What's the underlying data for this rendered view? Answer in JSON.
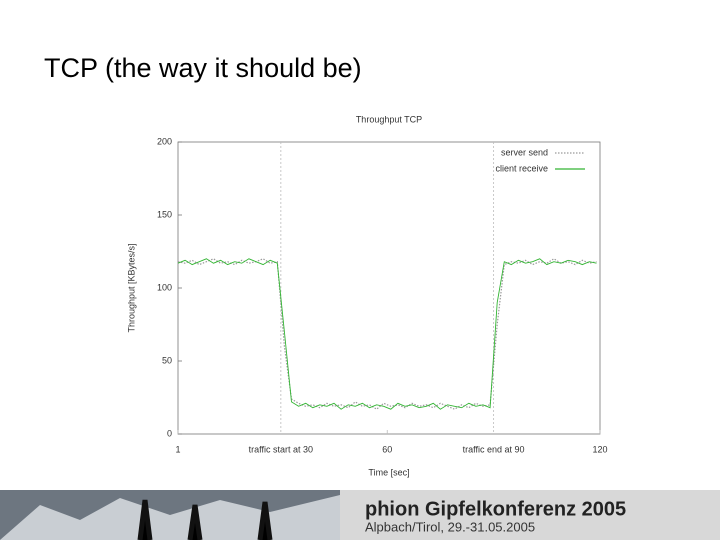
{
  "slide": {
    "title": "TCP (the way it should be)",
    "footer_title": "phion Gipfelkonferenz 2005",
    "footer_subtitle": "Alpbach/Tirol, 29.-31.05.2005"
  },
  "chart_data": {
    "type": "line",
    "title": "Throughput TCP",
    "x_label": "Time [sec]",
    "y_label": "Throughput [KBytes/s]",
    "x": [
      1,
      3,
      5,
      7,
      9,
      11,
      13,
      15,
      17,
      19,
      21,
      23,
      25,
      27,
      29,
      31,
      33,
      35,
      37,
      39,
      41,
      43,
      45,
      47,
      49,
      51,
      53,
      55,
      57,
      59,
      61,
      63,
      65,
      67,
      69,
      71,
      73,
      75,
      77,
      79,
      81,
      83,
      85,
      87,
      89,
      91,
      93,
      95,
      97,
      99,
      101,
      103,
      105,
      107,
      109,
      111,
      113,
      115,
      117,
      119
    ],
    "series": [
      {
        "name": "server send",
        "color": "#9a9a9a",
        "values": [
          118,
          117,
          119,
          116,
          118,
          120,
          117,
          118,
          116,
          119,
          117,
          118,
          120,
          117,
          118,
          60,
          24,
          21,
          19,
          20,
          18,
          21,
          19,
          20,
          18,
          22,
          19,
          20,
          17,
          21,
          19,
          20,
          18,
          21,
          19,
          20,
          18,
          21,
          19,
          17,
          20,
          18,
          21,
          19,
          20,
          75,
          116,
          118,
          117,
          119,
          116,
          118,
          117,
          120,
          117,
          118,
          116,
          119,
          117,
          118
        ]
      },
      {
        "name": "client receive",
        "color": "#33b533",
        "values": [
          117,
          119,
          116,
          118,
          120,
          117,
          119,
          116,
          118,
          117,
          120,
          118,
          116,
          119,
          117,
          70,
          22,
          19,
          21,
          18,
          20,
          19,
          21,
          17,
          20,
          19,
          21,
          18,
          20,
          19,
          17,
          21,
          19,
          20,
          18,
          19,
          21,
          17,
          20,
          19,
          18,
          21,
          19,
          20,
          18,
          90,
          118,
          116,
          119,
          117,
          118,
          120,
          116,
          118,
          117,
          119,
          118,
          116,
          118,
          117
        ]
      }
    ],
    "xlim": [
      1,
      120
    ],
    "xticks": [
      1,
      {
        "value": 30,
        "label": "traffic start at 30"
      },
      60,
      {
        "value": 90,
        "label": "traffic end at 90"
      },
      120
    ],
    "ylim": [
      0,
      200
    ],
    "yticks": [
      0,
      50,
      100,
      150,
      200
    ],
    "legend": "top-right"
  }
}
